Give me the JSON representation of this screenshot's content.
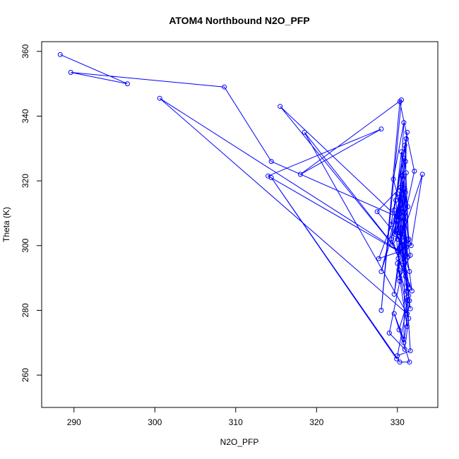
{
  "chart_data": {
    "type": "line",
    "title": "ATOM4 Northbound N2O_PFP",
    "xlabel": "N2O_PFP",
    "ylabel": "Theta (K)",
    "xlim": [
      286,
      335
    ],
    "ylim": [
      250,
      363
    ],
    "xticks": [
      "290",
      "300",
      "310",
      "320",
      "330"
    ],
    "yticks": [
      "260",
      "280",
      "300",
      "320",
      "340",
      "360"
    ],
    "grid": false,
    "line_color": "#0000ff",
    "marker": "open-circle",
    "series": [
      {
        "x": [
          288.3,
          296.6,
          289.6,
          308.6,
          314.4,
          329.9,
          315.5,
          330.8,
          318.5,
          331.2,
          300.6,
          331.0,
          314.0,
          328.0,
          318.0,
          330.5,
          328.0,
          330.3,
          332.1,
          330.0,
          333.1,
          331.7,
          329.5,
          330.8,
          330.0,
          331.2,
          329.2,
          330.9,
          331.4,
          330.6,
          329.7,
          331.0,
          330.2,
          331.5,
          329.9,
          330.7,
          331.3,
          330.4,
          327.5,
          330.9,
          331.1,
          329.6,
          330.3,
          331.6,
          330.0,
          330.8,
          331.2,
          329.8,
          330.5,
          331.0,
          329.4,
          330.6,
          331.3,
          330.1,
          327.7,
          330.9,
          329.9,
          331.4,
          330.2,
          330.7,
          331.1,
          328.0,
          330.4,
          331.8,
          329.2,
          330.6,
          331.0,
          330.3,
          331.5,
          329.9,
          330.8,
          331.2,
          330.0,
          331.6,
          330.5,
          329.6,
          331.0,
          330.2,
          331.4,
          330.9,
          329.0,
          330.3,
          331.1,
          330.7,
          330.1,
          331.3,
          331.5,
          330.8,
          331.0,
          331.4
        ],
        "y": [
          359.0,
          350.0,
          353.5,
          349.0,
          326.0,
          309.0,
          343.0,
          296.0,
          335.0,
          279.0,
          345.5,
          297.0,
          321.5,
          336.0,
          322.0,
          345.0,
          280.0,
          344.5,
          323.0,
          298.5,
          322.0,
          300.0,
          320.5,
          338.0,
          302.0,
          335.0,
          306.5,
          331.0,
          300.5,
          319.0,
          303.5,
          326.0,
          310.5,
          292.0,
          304.5,
          314.0,
          296.5,
          318.0,
          310.5,
          300.0,
          333.0,
          311.0,
          290.0,
          297.0,
          316.0,
          301.5,
          286.0,
          314.0,
          329.0,
          307.5,
          300.0,
          321.5,
          312.0,
          298.0,
          296.0,
          317.5,
          305.0,
          284.5,
          309.5,
          295.0,
          322.5,
          292.0,
          311.5,
          286.0,
          302.0,
          318.5,
          290.5,
          304.0,
          287.0,
          308.0,
          327.0,
          275.0,
          294.5,
          280.5,
          299.0,
          285.0,
          313.0,
          292.5,
          277.5,
          268.0,
          273.0,
          289.0,
          299.5,
          313.5,
          296.0,
          288.0,
          283.0,
          270.0,
          316.5,
          302.0
        ]
      },
      {
        "x": [
          329.9,
          314.4,
          330.3,
          331.5,
          329.6,
          330.8,
          330.2,
          331.3,
          330.0,
          331.6,
          331.2
        ],
        "y": [
          265.0,
          321.0,
          264.0,
          264.0,
          279.0,
          271.0,
          274.0,
          283.0,
          266.0,
          267.5,
          284.0
        ]
      }
    ]
  }
}
